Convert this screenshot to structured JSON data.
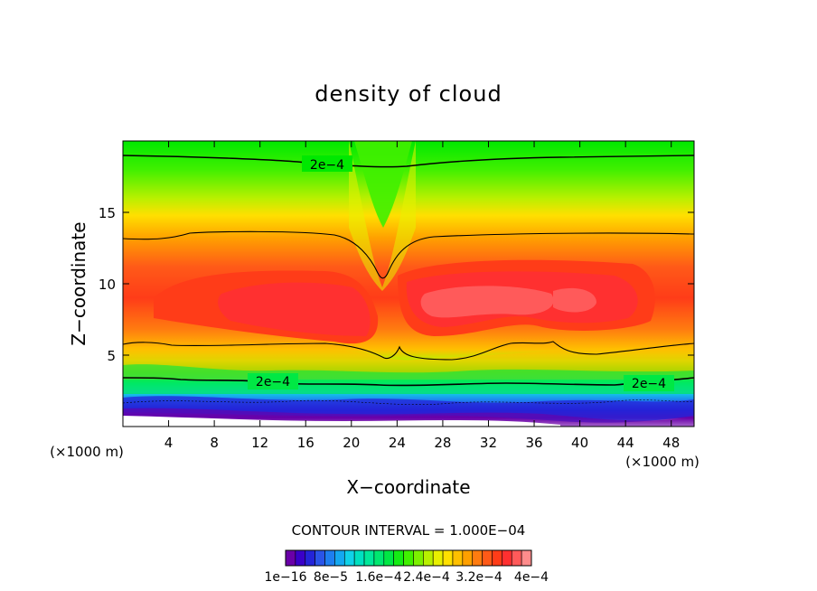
{
  "chart_data": {
    "type": "contour",
    "title": "density of cloud",
    "xlabel": "X−coordinate",
    "ylabel": "Z−coordinate",
    "x_unit_left": "(×1000 m)",
    "x_unit_right": "(×1000 m)",
    "xlim": [
      0,
      50
    ],
    "ylim": [
      0,
      20
    ],
    "xticks": [
      4,
      8,
      12,
      16,
      20,
      24,
      28,
      32,
      36,
      40,
      44,
      48
    ],
    "yticks": [
      5,
      10,
      15
    ],
    "contour_labels": [
      "2e−4",
      "2e−4",
      "2e−4"
    ],
    "contour_interval_text": "CONTOUR INTERVAL = 1.000E−04",
    "colorbar": {
      "labels": [
        "1e−16",
        "8e−5",
        "1.6e−4",
        "2.4e−4",
        "3.2e−4",
        "4e−4"
      ],
      "min": 0,
      "max": 0.0004,
      "levels": 22,
      "colors": [
        "#6a00a8",
        "#3a00c8",
        "#2424d8",
        "#2a54e8",
        "#1e7ef0",
        "#14a8f0",
        "#10d2e8",
        "#00e0c0",
        "#00e89a",
        "#00e870",
        "#00e844",
        "#14ec14",
        "#40f000",
        "#7cf000",
        "#b8f000",
        "#e8f000",
        "#ffe000",
        "#ffc000",
        "#ffa000",
        "#ff7c10",
        "#ff5a18",
        "#ff3c18",
        "#ff3030",
        "#ff5a5a",
        "#ff8c8c"
      ]
    }
  }
}
